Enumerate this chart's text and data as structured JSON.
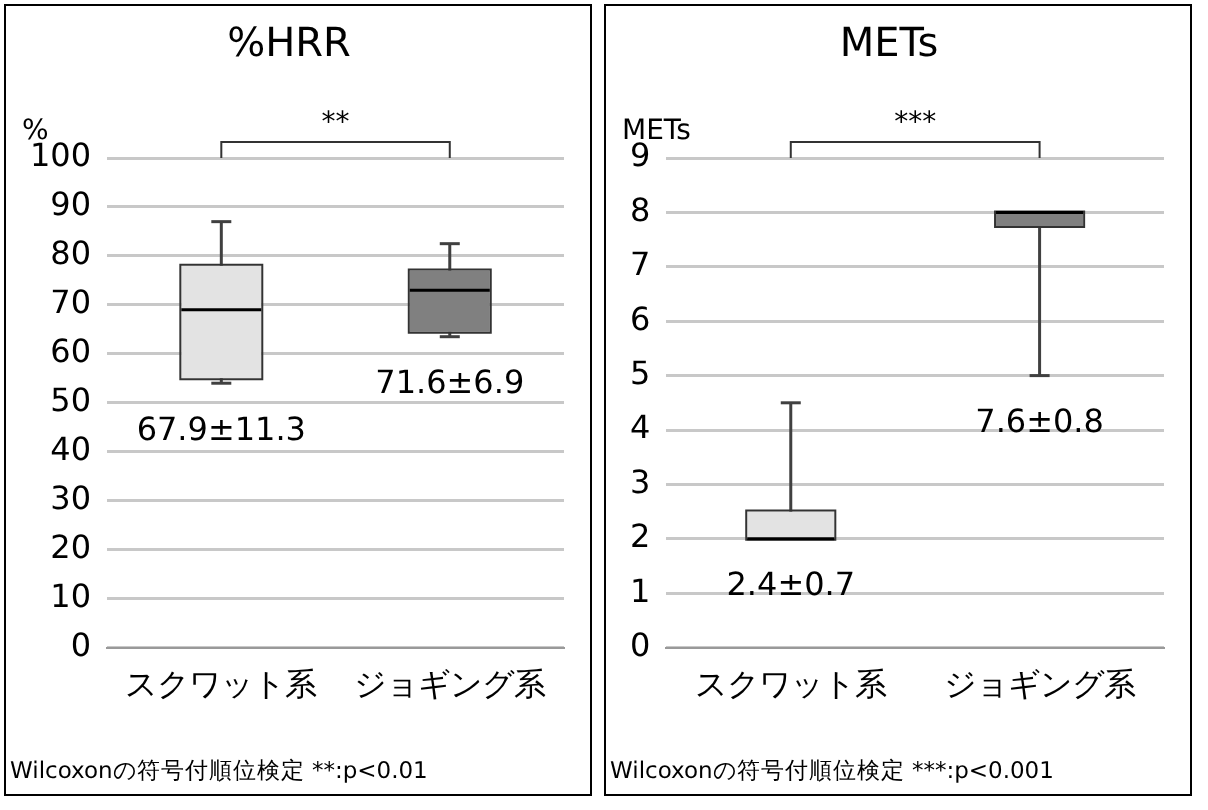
{
  "chart_data": [
    {
      "type": "box",
      "title": "%HRR",
      "ylabel": "%",
      "categories": [
        "スクワット系",
        "ジョギング系"
      ],
      "boxes": [
        {
          "low": 54,
          "q1": 55,
          "median": 69,
          "q3": 78,
          "high": 87
        },
        {
          "low": 63.5,
          "q1": 64.5,
          "median": 73,
          "q3": 77,
          "high": 82.5
        }
      ],
      "colors": [
        "#e3e3e3",
        "#808080"
      ],
      "ylim": [
        0,
        100
      ],
      "yticks": [
        0,
        10,
        20,
        30,
        40,
        50,
        60,
        70,
        80,
        90,
        100
      ],
      "grid": "y",
      "annotations": [
        "**",
        "Wilcoxonの符号付順位検定 **:p<0.01",
        "67.9±11.3",
        "71.6±6.9"
      ]
    },
    {
      "type": "box",
      "title": "METs",
      "ylabel": "METs",
      "categories": [
        "スクワット系",
        "ジョギング系"
      ],
      "boxes": [
        {
          "low": 2,
          "q1": 2,
          "median": 2,
          "q3": 2.5,
          "high": 4.5
        },
        {
          "low": 5,
          "q1": 7.75,
          "median": 8,
          "q3": 8,
          "high": 8
        }
      ],
      "colors": [
        "#e3e3e3",
        "#808080"
      ],
      "ylim": [
        0,
        9
      ],
      "yticks": [
        0,
        1,
        2,
        3,
        4,
        5,
        6,
        7,
        8,
        9
      ],
      "grid": "y",
      "annotations": [
        "***",
        "Wilcoxonの符号付順位検定 ***:p<0.001",
        "2.4±0.7",
        "7.6±0.8"
      ]
    }
  ]
}
